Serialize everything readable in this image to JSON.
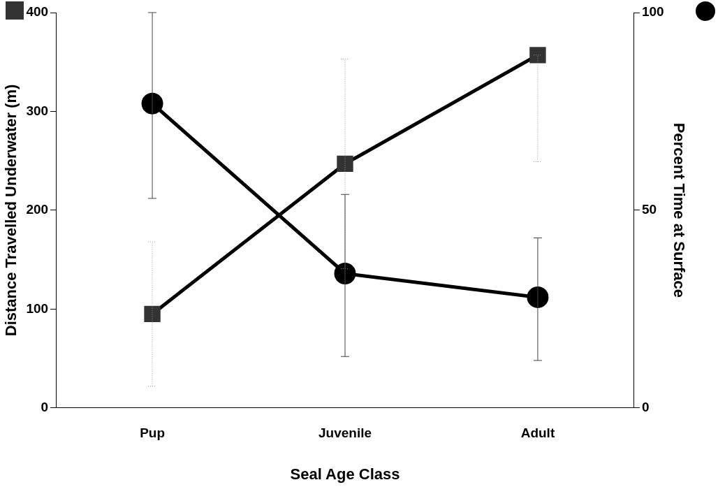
{
  "chart_data": {
    "type": "line",
    "xlabel": "Seal Age Class",
    "ylabel": "Distance Travelled Underwater (m)",
    "y2label": "Percent Time at Surface",
    "categories": [
      "Pup",
      "Juvenile",
      "Adult"
    ],
    "series": [
      {
        "color": "#333333",
        "values": [
          95,
          247,
          357
        ],
        "errors": [
          73,
          106,
          [
            249,
            357
          ]
        ],
        "marker": "square"
      },
      {
        "color": "#000000",
        "values": [
          77,
          34,
          28
        ],
        "errors": [
          [
            53,
            100
          ],
          [
            13,
            54
          ],
          [
            12,
            43
          ]
        ],
        "marker": "circle",
        "axis": "y2"
      }
    ],
    "ylim": [
      0,
      400
    ],
    "yticks": [
      0,
      100,
      200,
      300,
      400
    ],
    "y2lim": [
      0,
      100
    ],
    "y2ticks": [
      0,
      50,
      100
    ],
    "grid": false,
    "legend": false,
    "line_style": "solid"
  }
}
